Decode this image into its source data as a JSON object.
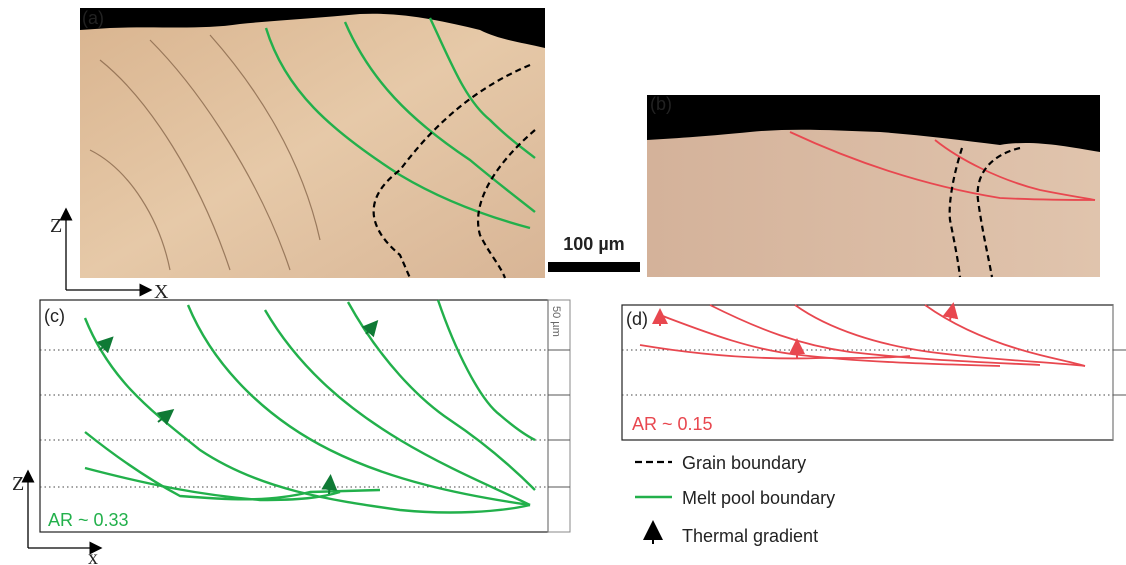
{
  "panels": {
    "a": {
      "label": "(a)",
      "axis_z": "Z",
      "axis_x": "X"
    },
    "b": {
      "label": "(b)"
    },
    "c": {
      "label": "(c)",
      "axis_z": "Z",
      "axis_x": "x",
      "scale": "50 µm",
      "aspect_ratio": "AR ~ 0.33"
    },
    "d": {
      "label": "(d)",
      "aspect_ratio": "AR ~ 0.15"
    }
  },
  "scale_bar": "100 µm",
  "legend": {
    "items": [
      {
        "label": "Grain boundary"
      },
      {
        "label": "Melt pool boundary"
      },
      {
        "label": "Thermal gradient"
      }
    ]
  }
}
